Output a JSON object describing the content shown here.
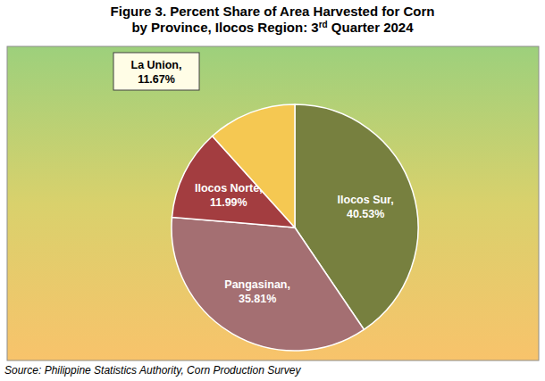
{
  "chart_data": {
    "type": "pie",
    "title": [
      "Figure 3.  Percent Share of Area Harvested for Corn",
      "by Province, Ilocos Region: 3rd Quarter 2024"
    ],
    "categories": [
      "Ilocos Sur,",
      "Pangasinan,",
      "Ilocos Norte,",
      "La Union,"
    ],
    "values": [
      40.53,
      35.81,
      11.99,
      11.67
    ],
    "value_labels": [
      "40.53%",
      "35.81%",
      "11.99%",
      "11.67%"
    ],
    "colors": [
      "#77803f",
      "#a46f72",
      "#a33d40",
      "#f5c852"
    ],
    "data_labels": true,
    "source": "Source:  Philippine Statistics Authority, Corn Production Survey"
  }
}
